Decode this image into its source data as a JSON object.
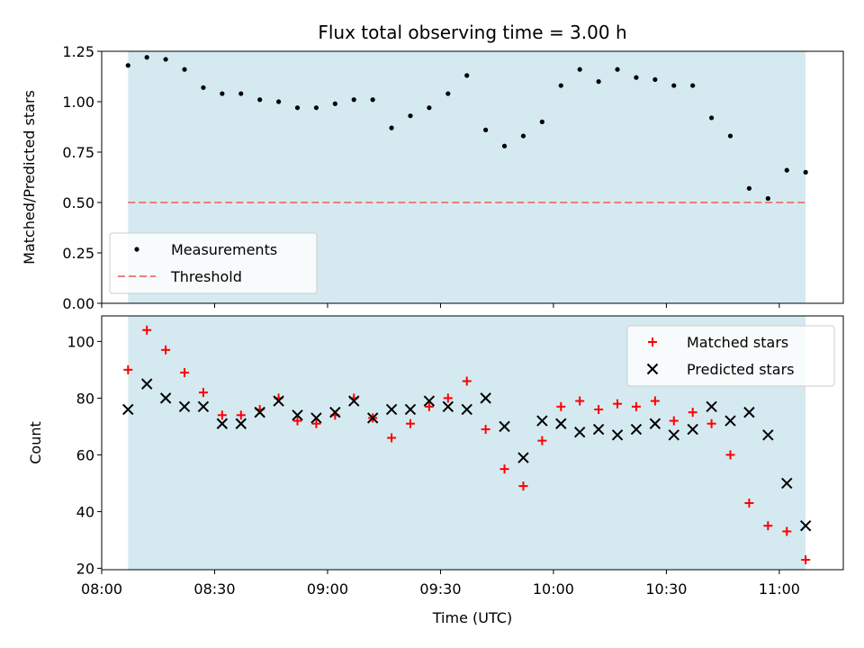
{
  "colors": {
    "band": "#d4eaf0",
    "measurement": "#000000",
    "threshold": "#f07b7b",
    "matched": "#ff0000",
    "predicted": "#000000"
  },
  "chart_data": [
    {
      "type": "scatter",
      "title": "Flux total observing time = 3.00 h",
      "xlabel": "",
      "ylabel": "Matched/Predicted stars",
      "ylim": [
        0,
        1.25
      ],
      "xlim": [
        "08:00",
        "11:17"
      ],
      "yticks": [
        "0.00",
        "0.25",
        "0.50",
        "0.75",
        "1.00",
        "1.25"
      ],
      "band": [
        "08:07",
        "11:07"
      ],
      "legend_position": "lower-left",
      "series": [
        {
          "name": "Measurements",
          "marker": "dot",
          "x": [
            "08:07",
            "08:12",
            "08:17",
            "08:22",
            "08:27",
            "08:32",
            "08:37",
            "08:42",
            "08:47",
            "08:52",
            "08:57",
            "09:02",
            "09:07",
            "09:12",
            "09:17",
            "09:22",
            "09:27",
            "09:32",
            "09:37",
            "09:42",
            "09:47",
            "09:52",
            "09:57",
            "10:02",
            "10:07",
            "10:12",
            "10:17",
            "10:22",
            "10:27",
            "10:32",
            "10:37",
            "10:42",
            "10:47",
            "10:52",
            "10:57",
            "11:02",
            "11:07"
          ],
          "y": [
            1.18,
            1.22,
            1.21,
            1.16,
            1.07,
            1.04,
            1.04,
            1.01,
            1.0,
            0.97,
            0.97,
            0.99,
            1.01,
            1.01,
            0.87,
            0.93,
            0.97,
            1.04,
            1.13,
            0.86,
            0.78,
            0.83,
            0.9,
            1.08,
            1.16,
            1.1,
            1.16,
            1.12,
            1.11,
            1.08,
            1.08,
            0.92,
            0.83,
            0.57,
            0.52,
            0.66,
            0.65
          ]
        },
        {
          "name": "Threshold",
          "marker": "dashed-line",
          "x": [
            "08:07",
            "11:07"
          ],
          "y": [
            0.5,
            0.5
          ]
        }
      ]
    },
    {
      "type": "scatter",
      "title": "",
      "xlabel": "Time (UTC)",
      "ylabel": "Count",
      "ylim": [
        19.5,
        109
      ],
      "xlim": [
        "08:00",
        "11:17"
      ],
      "xticks": [
        "08:00",
        "08:30",
        "09:00",
        "09:30",
        "10:00",
        "10:30",
        "11:00"
      ],
      "yticks": [
        "20",
        "40",
        "60",
        "80",
        "100"
      ],
      "band": [
        "08:07",
        "11:07"
      ],
      "legend_position": "top-right",
      "series": [
        {
          "name": "Matched stars",
          "marker": "plus",
          "x": [
            "08:07",
            "08:12",
            "08:17",
            "08:22",
            "08:27",
            "08:32",
            "08:37",
            "08:42",
            "08:47",
            "08:52",
            "08:57",
            "09:02",
            "09:07",
            "09:12",
            "09:17",
            "09:22",
            "09:27",
            "09:32",
            "09:37",
            "09:42",
            "09:47",
            "09:52",
            "09:57",
            "10:02",
            "10:07",
            "10:12",
            "10:17",
            "10:22",
            "10:27",
            "10:32",
            "10:37",
            "10:42",
            "10:47",
            "10:52",
            "10:57",
            "11:02",
            "11:07"
          ],
          "y": [
            90,
            104,
            97,
            89,
            82,
            74,
            74,
            76,
            80,
            72,
            71,
            74,
            80,
            73,
            66,
            71,
            77,
            80,
            86,
            69,
            55,
            49,
            65,
            77,
            79,
            76,
            78,
            77,
            79,
            72,
            75,
            71,
            60,
            43,
            35,
            33,
            23
          ]
        },
        {
          "name": "Predicted stars",
          "marker": "x",
          "x": [
            "08:07",
            "08:12",
            "08:17",
            "08:22",
            "08:27",
            "08:32",
            "08:37",
            "08:42",
            "08:47",
            "08:52",
            "08:57",
            "09:02",
            "09:07",
            "09:12",
            "09:17",
            "09:22",
            "09:27",
            "09:32",
            "09:37",
            "09:42",
            "09:47",
            "09:52",
            "09:57",
            "10:02",
            "10:07",
            "10:12",
            "10:17",
            "10:22",
            "10:27",
            "10:32",
            "10:37",
            "10:42",
            "10:47",
            "10:52",
            "10:57",
            "11:02",
            "11:07"
          ],
          "y": [
            76,
            85,
            80,
            77,
            77,
            71,
            71,
            75,
            79,
            74,
            73,
            75,
            79,
            73,
            76,
            76,
            79,
            77,
            76,
            80,
            70,
            59,
            72,
            71,
            68,
            69,
            67,
            69,
            71,
            67,
            69,
            77,
            72,
            75,
            67,
            50,
            35
          ]
        }
      ]
    }
  ]
}
